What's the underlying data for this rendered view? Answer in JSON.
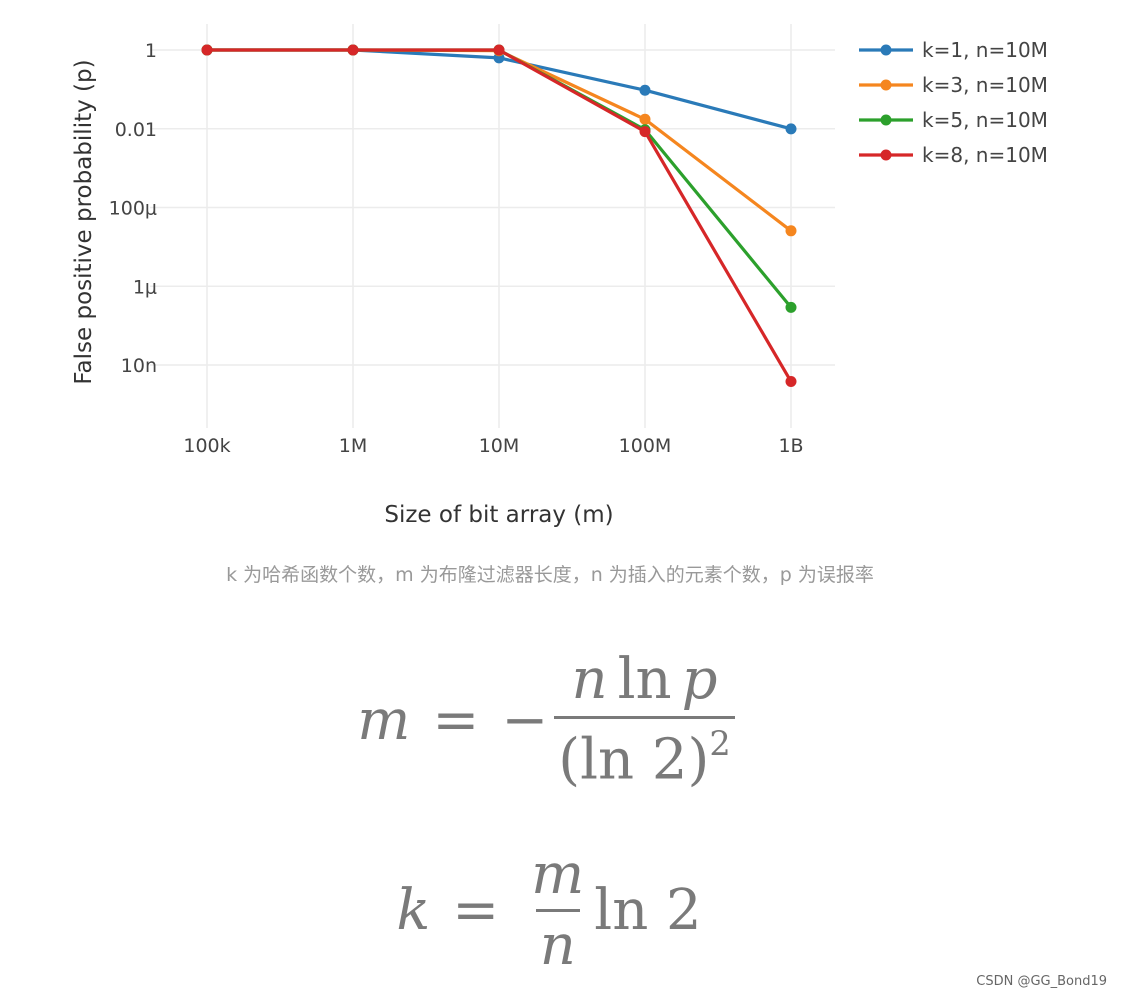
{
  "chart_data": {
    "type": "line",
    "title": "",
    "xlabel": "Size of bit array (m)",
    "ylabel": "False positive probability (p)",
    "x_scale": "log",
    "y_scale": "log",
    "x": [
      100000,
      1000000,
      10000000,
      100000000,
      1000000000
    ],
    "x_tick_labels": [
      "100k",
      "1M",
      "10M",
      "100M",
      "1B"
    ],
    "y_ticks": [
      1,
      0.01,
      0.0001,
      1e-06,
      1e-08
    ],
    "y_tick_labels": [
      "1",
      "0.01",
      "100μ",
      "1μ",
      "10n"
    ],
    "grid": true,
    "legend_position": "top-right",
    "series": [
      {
        "name": "k=1, n=10M",
        "color": "#2a7ab8",
        "values": [
          0.99999,
          0.99995,
          0.632,
          0.0952,
          0.00995
        ]
      },
      {
        "name": "k=3, n=10M",
        "color": "#f5861f",
        "values": [
          1.0,
          1.0,
          0.96,
          0.0174,
          2.56e-05
        ]
      },
      {
        "name": "k=5, n=10M",
        "color": "#2ca02c",
        "values": [
          1.0,
          1.0,
          0.999,
          0.00943,
          2.9e-07
        ]
      },
      {
        "name": "k=8, n=10M",
        "color": "#d62728",
        "values": [
          1.0,
          1.0,
          1.0,
          0.00846,
          3.8e-09
        ]
      }
    ]
  },
  "caption": "k 为哈希函数个数，m 为布隆过滤器长度，n 为插入的元素个数，p 为误报率",
  "formula1": {
    "lhs": "m",
    "eq": "=",
    "minus": "−",
    "num_var": "n",
    "num_ln": "ln",
    "num_p": "p",
    "den_base": "(ln 2)",
    "den_exp": "2"
  },
  "formula2": {
    "lhs": "k",
    "eq": "=",
    "num": "m",
    "den": "n",
    "tail": "ln 2"
  },
  "watermark": "CSDN @GG_Bond19"
}
